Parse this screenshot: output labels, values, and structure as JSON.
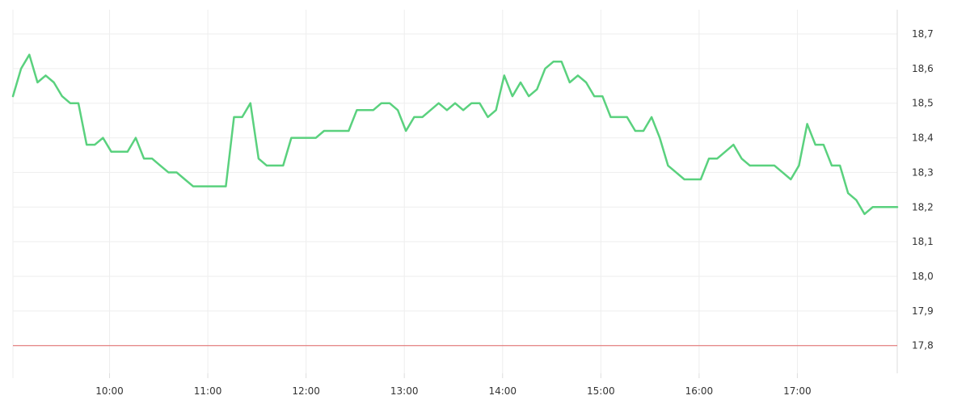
{
  "chart_data": {
    "type": "line",
    "title": "",
    "xlabel": "",
    "ylabel": "",
    "x_ticks": [
      "10:00",
      "11:00",
      "12:00",
      "13:00",
      "14:00",
      "15:00",
      "16:00",
      "17:00"
    ],
    "y_ticks": [
      "17,8",
      "17,9",
      "18,0",
      "18,1",
      "18,2",
      "18,3",
      "18,4",
      "18,5",
      "18,6",
      "18,7"
    ],
    "xlim": [
      "09:01",
      "18:01"
    ],
    "ylim": [
      17.72,
      18.77
    ],
    "grid": true,
    "legend": "none",
    "reference_line": {
      "value": 17.8,
      "color": "#e06666"
    },
    "series": [
      {
        "color": "#5ad17e",
        "x": [
          "09:01",
          "09:06",
          "09:11",
          "09:16",
          "09:21",
          "09:26",
          "09:31",
          "09:36",
          "09:41",
          "09:46",
          "09:51",
          "09:56",
          "10:01",
          "10:06",
          "10:11",
          "10:16",
          "10:21",
          "10:26",
          "10:31",
          "10:36",
          "10:41",
          "10:46",
          "10:51",
          "10:56",
          "11:01",
          "11:06",
          "11:11",
          "11:16",
          "11:21",
          "11:26",
          "11:31",
          "11:36",
          "11:41",
          "11:46",
          "11:51",
          "11:56",
          "12:01",
          "12:06",
          "12:11",
          "12:16",
          "12:21",
          "12:26",
          "12:31",
          "12:36",
          "12:41",
          "12:46",
          "12:51",
          "12:56",
          "13:01",
          "13:06",
          "13:11",
          "13:16",
          "13:21",
          "13:26",
          "13:31",
          "13:36",
          "13:41",
          "13:46",
          "13:51",
          "13:56",
          "14:01",
          "14:06",
          "14:11",
          "14:16",
          "14:21",
          "14:26",
          "14:31",
          "14:36",
          "14:41",
          "14:46",
          "14:51",
          "14:56",
          "15:01",
          "15:06",
          "15:11",
          "15:16",
          "15:21",
          "15:26",
          "15:31",
          "15:36",
          "15:41",
          "15:46",
          "15:51",
          "15:56",
          "16:01",
          "16:06",
          "16:11",
          "16:16",
          "16:21",
          "16:26",
          "16:31",
          "16:36",
          "16:41",
          "16:46",
          "16:51",
          "16:56",
          "17:01",
          "17:06",
          "17:11",
          "17:16",
          "17:21",
          "17:26",
          "17:31",
          "17:36",
          "17:41",
          "17:46",
          "17:51",
          "17:56",
          "18:01"
        ],
        "y": [
          18.52,
          18.6,
          18.64,
          18.56,
          18.58,
          18.56,
          18.52,
          18.5,
          18.5,
          18.38,
          18.38,
          18.4,
          18.36,
          18.36,
          18.36,
          18.4,
          18.34,
          18.34,
          18.32,
          18.3,
          18.3,
          18.28,
          18.26,
          18.26,
          18.26,
          18.26,
          18.26,
          18.46,
          18.46,
          18.5,
          18.34,
          18.32,
          18.32,
          18.32,
          18.4,
          18.4,
          18.4,
          18.4,
          18.42,
          18.42,
          18.42,
          18.42,
          18.48,
          18.48,
          18.48,
          18.5,
          18.5,
          18.48,
          18.42,
          18.46,
          18.46,
          18.48,
          18.5,
          18.48,
          18.5,
          18.48,
          18.5,
          18.5,
          18.46,
          18.48,
          18.58,
          18.52,
          18.56,
          18.52,
          18.54,
          18.6,
          18.62,
          18.62,
          18.56,
          18.58,
          18.56,
          18.52,
          18.52,
          18.46,
          18.46,
          18.46,
          18.42,
          18.42,
          18.46,
          18.4,
          18.32,
          18.3,
          18.28,
          18.28,
          18.28,
          18.34,
          18.34,
          18.36,
          18.38,
          18.34,
          18.32,
          18.32,
          18.32,
          18.32,
          18.3,
          18.28,
          18.32,
          18.44,
          18.38,
          18.38,
          18.32,
          18.32,
          18.24,
          18.22,
          18.18,
          18.2,
          18.2,
          18.2,
          18.2
        ]
      }
    ]
  }
}
